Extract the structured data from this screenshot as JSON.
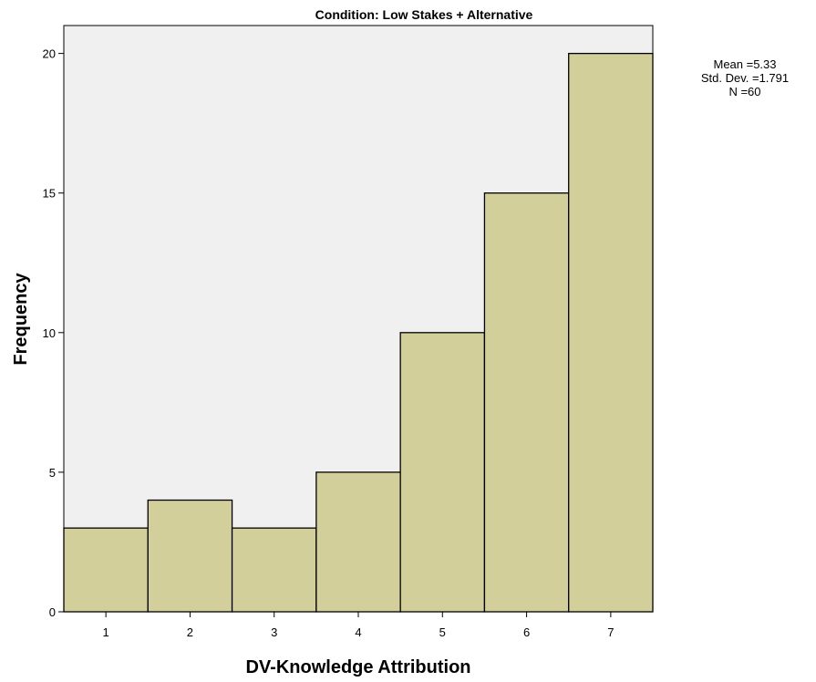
{
  "chart_data": {
    "type": "bar",
    "title": "Condition: Low Stakes + Alternative",
    "xlabel": "DV-Knowledge Attribution",
    "ylabel": "Frequency",
    "categories": [
      "1",
      "2",
      "3",
      "4",
      "5",
      "6",
      "7"
    ],
    "values": [
      3,
      4,
      3,
      5,
      10,
      15,
      20
    ],
    "ylim": [
      0,
      21
    ],
    "yticks": [
      0,
      5,
      10,
      15,
      20
    ],
    "grid": false,
    "colors": {
      "bar_fill": "#d3cf9a",
      "plot_background": "#f0f0f0",
      "bar_stroke": "#000000"
    },
    "stats": {
      "mean": "Mean =5.33",
      "std_dev": "Std. Dev. =1.791",
      "n": "N =60"
    }
  }
}
